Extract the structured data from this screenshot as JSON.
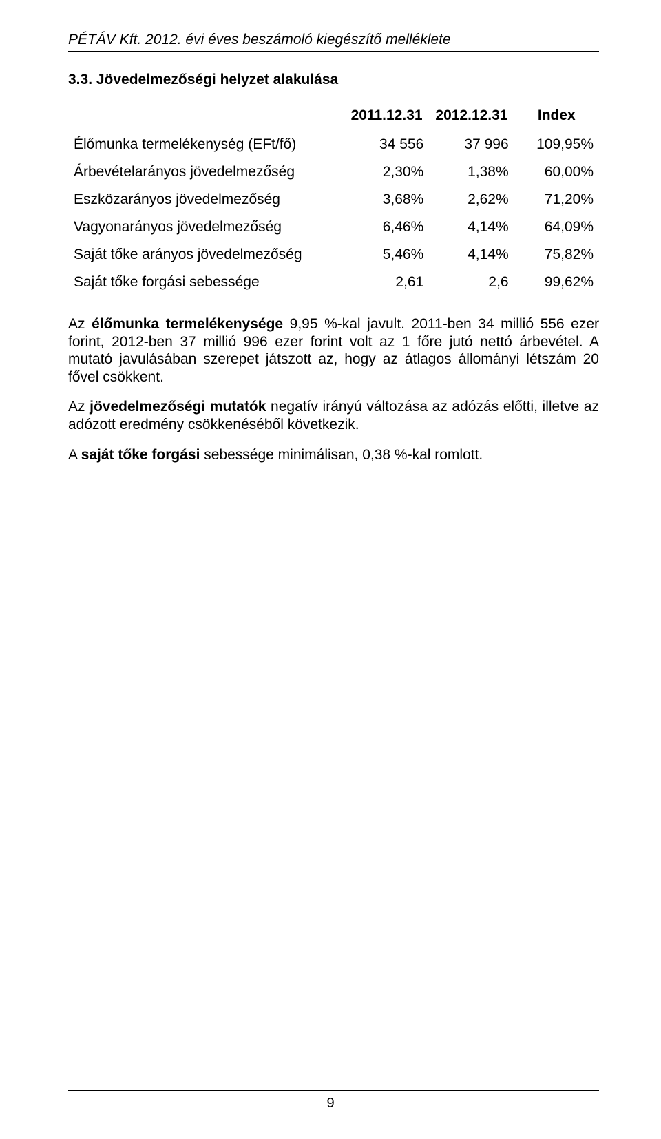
{
  "header": {
    "text": "PÉTÁV Kft. 2012. évi éves beszámoló kiegészítő melléklete"
  },
  "section": {
    "heading": "3.3. Jövedelmezőségi helyzet alakulása"
  },
  "table": {
    "type": "table",
    "columns": [
      "",
      "2011.12.31",
      "2012.12.31",
      "Index"
    ],
    "rows": [
      {
        "label": "Élőmunka termelékenység (EFt/fő)",
        "v1": "34 556",
        "v2": "37 996",
        "idx": "109,95%"
      },
      {
        "label": "Árbevételarányos jövedelmezőség",
        "v1": "2,30%",
        "v2": "1,38%",
        "idx": "60,00%"
      },
      {
        "label": "Eszközarányos jövedelmezőség",
        "v1": "3,68%",
        "v2": "2,62%",
        "idx": "71,20%"
      },
      {
        "label": "Vagyonarányos jövedelmezőség",
        "v1": "6,46%",
        "v2": "4,14%",
        "idx": "64,09%"
      },
      {
        "label": "Saját tőke arányos jövedelmezőség",
        "v1": "5,46%",
        "v2": "4,14%",
        "idx": "75,82%"
      },
      {
        "label": "Saját tőke forgási sebessége",
        "v1": "2,61",
        "v2": "2,6",
        "idx": "99,62%"
      }
    ],
    "label_fontsize": 21,
    "text_color": "#000000",
    "background_color": "#ffffff"
  },
  "paragraphs": {
    "p1_pre": "Az ",
    "p1_b": "élőmunka termelékenysége",
    "p1_post": " 9,95 %-kal javult. 2011-ben 34 millió 556 ezer forint, 2012-ben 37 millió 996 ezer forint volt az 1 főre jutó nettó árbevétel. A mutató javulásában szerepet játszott az, hogy az átlagos állományi létszám 20 fővel csökkent.",
    "p2_pre": "Az ",
    "p2_b": "jövedelmezőségi mutatók",
    "p2_post": " negatív irányú változása az adózás előtti, illetve az adózott eredmény csökkenéséből következik.",
    "p3_pre": "A ",
    "p3_b": "saját tőke forgási",
    "p3_post": " sebessége minimálisan, 0,38 %-kal romlott."
  },
  "footer": {
    "page_number": "9"
  },
  "style": {
    "font_family": "Arial",
    "body_fontsize": 21,
    "heading_fontsize": 21,
    "text_color": "#000000",
    "background_color": "#ffffff",
    "rule_color": "#000000"
  }
}
